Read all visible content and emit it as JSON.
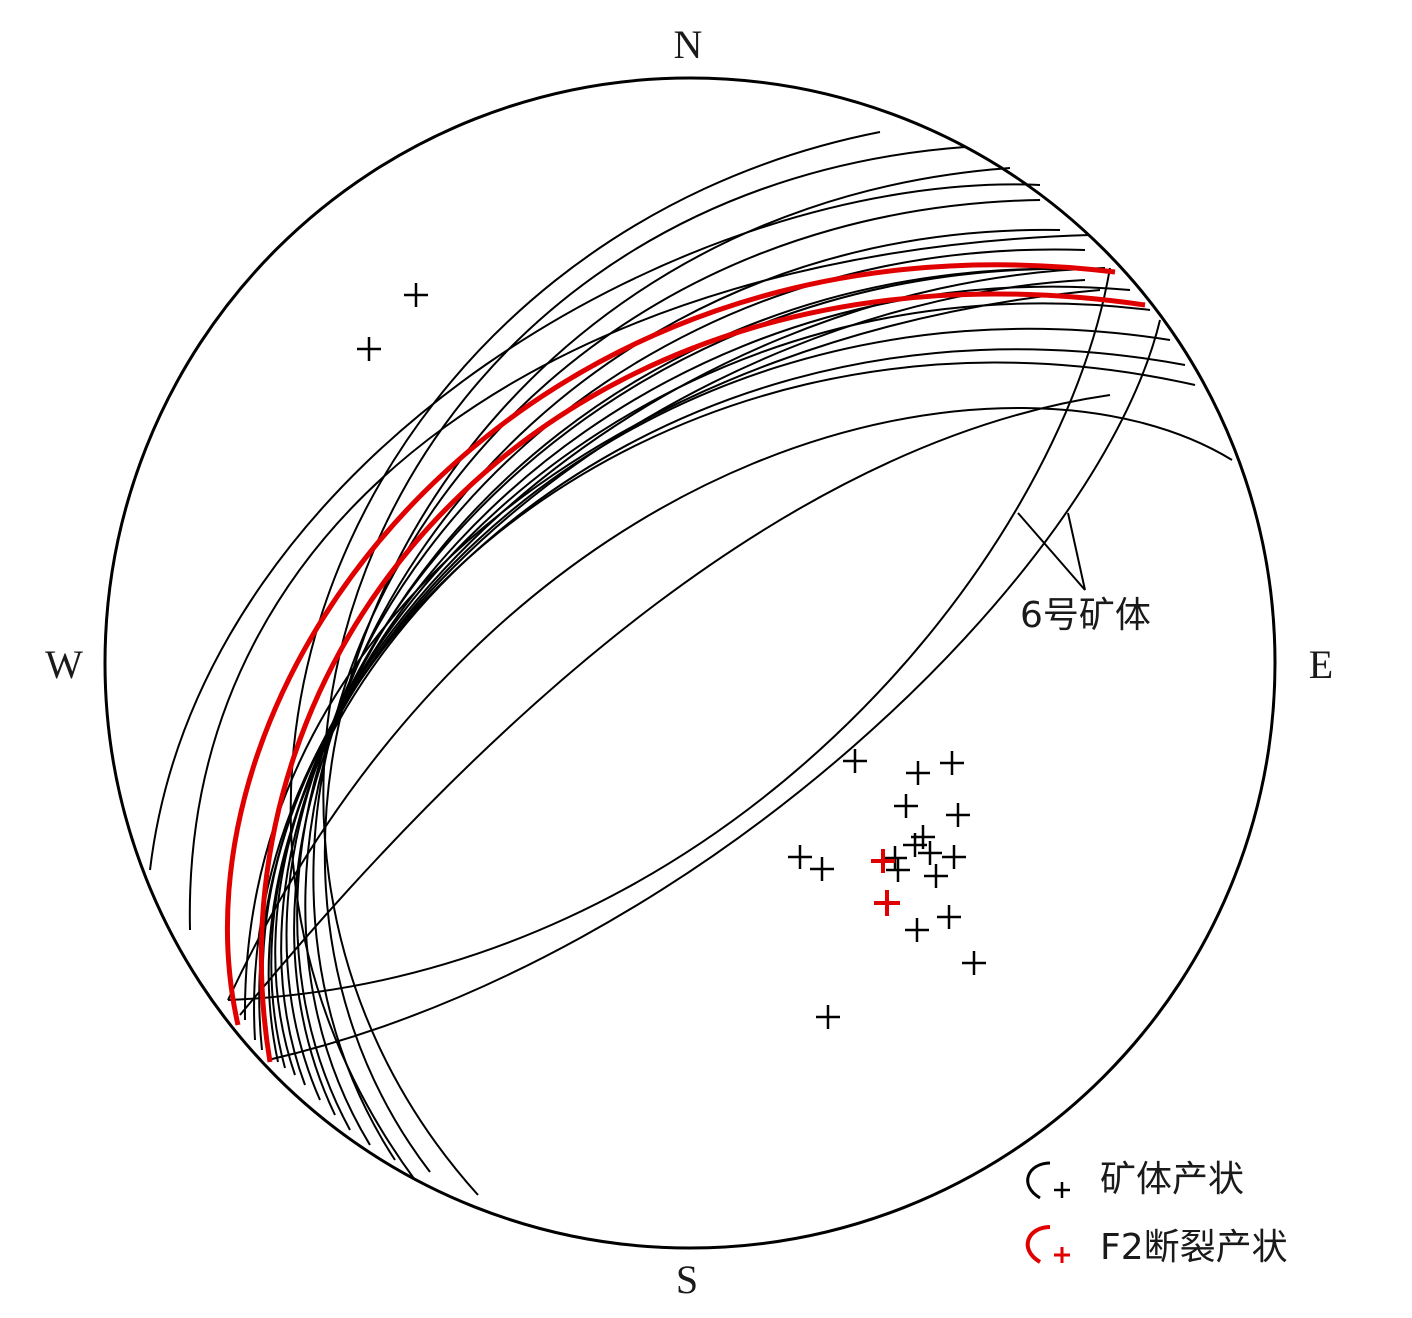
{
  "compass": {
    "north": "N",
    "south": "S",
    "east": "E",
    "west": "W"
  },
  "annotation": {
    "text": "6号矿体"
  },
  "legend": {
    "ore_body": {
      "label": "矿体产状",
      "color": "#000000"
    },
    "f2_fault": {
      "label": "F2断裂产状",
      "color": "#e00000"
    }
  }
}
